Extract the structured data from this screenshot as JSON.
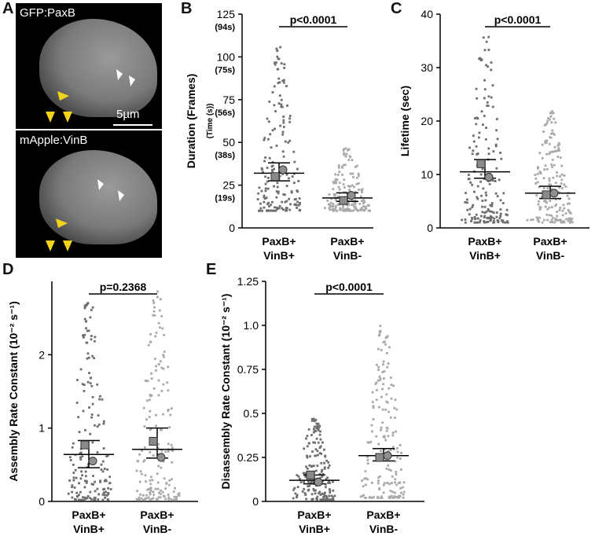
{
  "micrographs": [
    {
      "label": "GFP:PaxB",
      "scale_bar": "5µm"
    },
    {
      "label": "mApple:VinB"
    }
  ],
  "panels": {
    "A": "A",
    "B": "B",
    "C": "C",
    "D": "D",
    "E": "E"
  },
  "chart_data": [
    {
      "id": "B",
      "type": "scatter",
      "categories": [
        "PaxB+\nVinB+",
        "PaxB+\nVinB-"
      ],
      "ylabel": "Duration (Frames)",
      "ylabel_sub": "(Time (s))",
      "ylim": [
        0,
        125
      ],
      "yticks": [
        0,
        25,
        50,
        75,
        100,
        125
      ],
      "ytick_time_labels": [
        "(19s)",
        "(38s)",
        "(56s)",
        "(75s)",
        "(94s)"
      ],
      "pvalue": "p<0.0001",
      "series": [
        {
          "values_range": [
            10,
            107
          ],
          "mean": 32,
          "sem": [
            27.5,
            38
          ],
          "replicate_means": [
            30,
            34
          ]
        },
        {
          "values_range": [
            10,
            48
          ],
          "mean": 17.5,
          "sem": [
            15.5,
            20.5
          ],
          "replicate_means": [
            16,
            19
          ]
        }
      ]
    },
    {
      "id": "C",
      "type": "scatter",
      "categories": [
        "PaxB+\nVinB+",
        "PaxB+\nVinB-"
      ],
      "ylabel": "Lifetime (sec)",
      "ylim": [
        0,
        40
      ],
      "yticks": [
        0,
        10,
        20,
        30,
        40
      ],
      "pvalue": "p<0.0001",
      "series": [
        {
          "values_range": [
            1,
            36
          ],
          "mean": 10.5,
          "sem": [
            9.3,
            12.8
          ],
          "replicate_means": [
            12,
            9.5
          ]
        },
        {
          "values_range": [
            1,
            22
          ],
          "mean": 6.5,
          "sem": [
            5.5,
            7.8
          ],
          "replicate_means": [
            6.2,
            6.5
          ]
        }
      ]
    },
    {
      "id": "D",
      "type": "scatter",
      "categories": [
        "PaxB+\nVinB+",
        "PaxB+\nVinB-"
      ],
      "ylabel": "Assembly Rate Constant (10⁻² s⁻¹)",
      "ylim": [
        0,
        3
      ],
      "yticks": [
        0,
        1,
        2
      ],
      "pvalue": "p=0.2368",
      "series": [
        {
          "values_range": [
            0.02,
            2.75
          ],
          "mean": 0.64,
          "sem": [
            0.46,
            0.83
          ],
          "replicate_means": [
            0.77,
            0.55
          ]
        },
        {
          "values_range": [
            0.02,
            2.9
          ],
          "mean": 0.71,
          "sem": [
            0.59,
            1.0
          ],
          "replicate_means": [
            0.82,
            0.6
          ]
        }
      ]
    },
    {
      "id": "E",
      "type": "scatter",
      "categories": [
        "PaxB+\nVinB+",
        "PaxB+\nVinB-"
      ],
      "ylabel": "Disassembly Rate Constant (10⁻² s⁻¹)",
      "ylim": [
        0,
        1.25
      ],
      "yticks": [
        0,
        0.25,
        0.5,
        0.75,
        1.0,
        1.25
      ],
      "ytick_labels": [
        "0",
        "0.25",
        "0.5",
        "0.75",
        "1.0",
        "1.25"
      ],
      "pvalue": "p<0.0001",
      "series": [
        {
          "values_range": [
            0.01,
            0.47
          ],
          "mean": 0.12,
          "sem": [
            0.1,
            0.15
          ],
          "replicate_means": [
            0.15,
            0.11
          ]
        },
        {
          "values_range": [
            0.02,
            1.0
          ],
          "mean": 0.26,
          "sem": [
            0.23,
            0.3
          ],
          "replicate_means": [
            0.25,
            0.26
          ]
        }
      ]
    }
  ]
}
